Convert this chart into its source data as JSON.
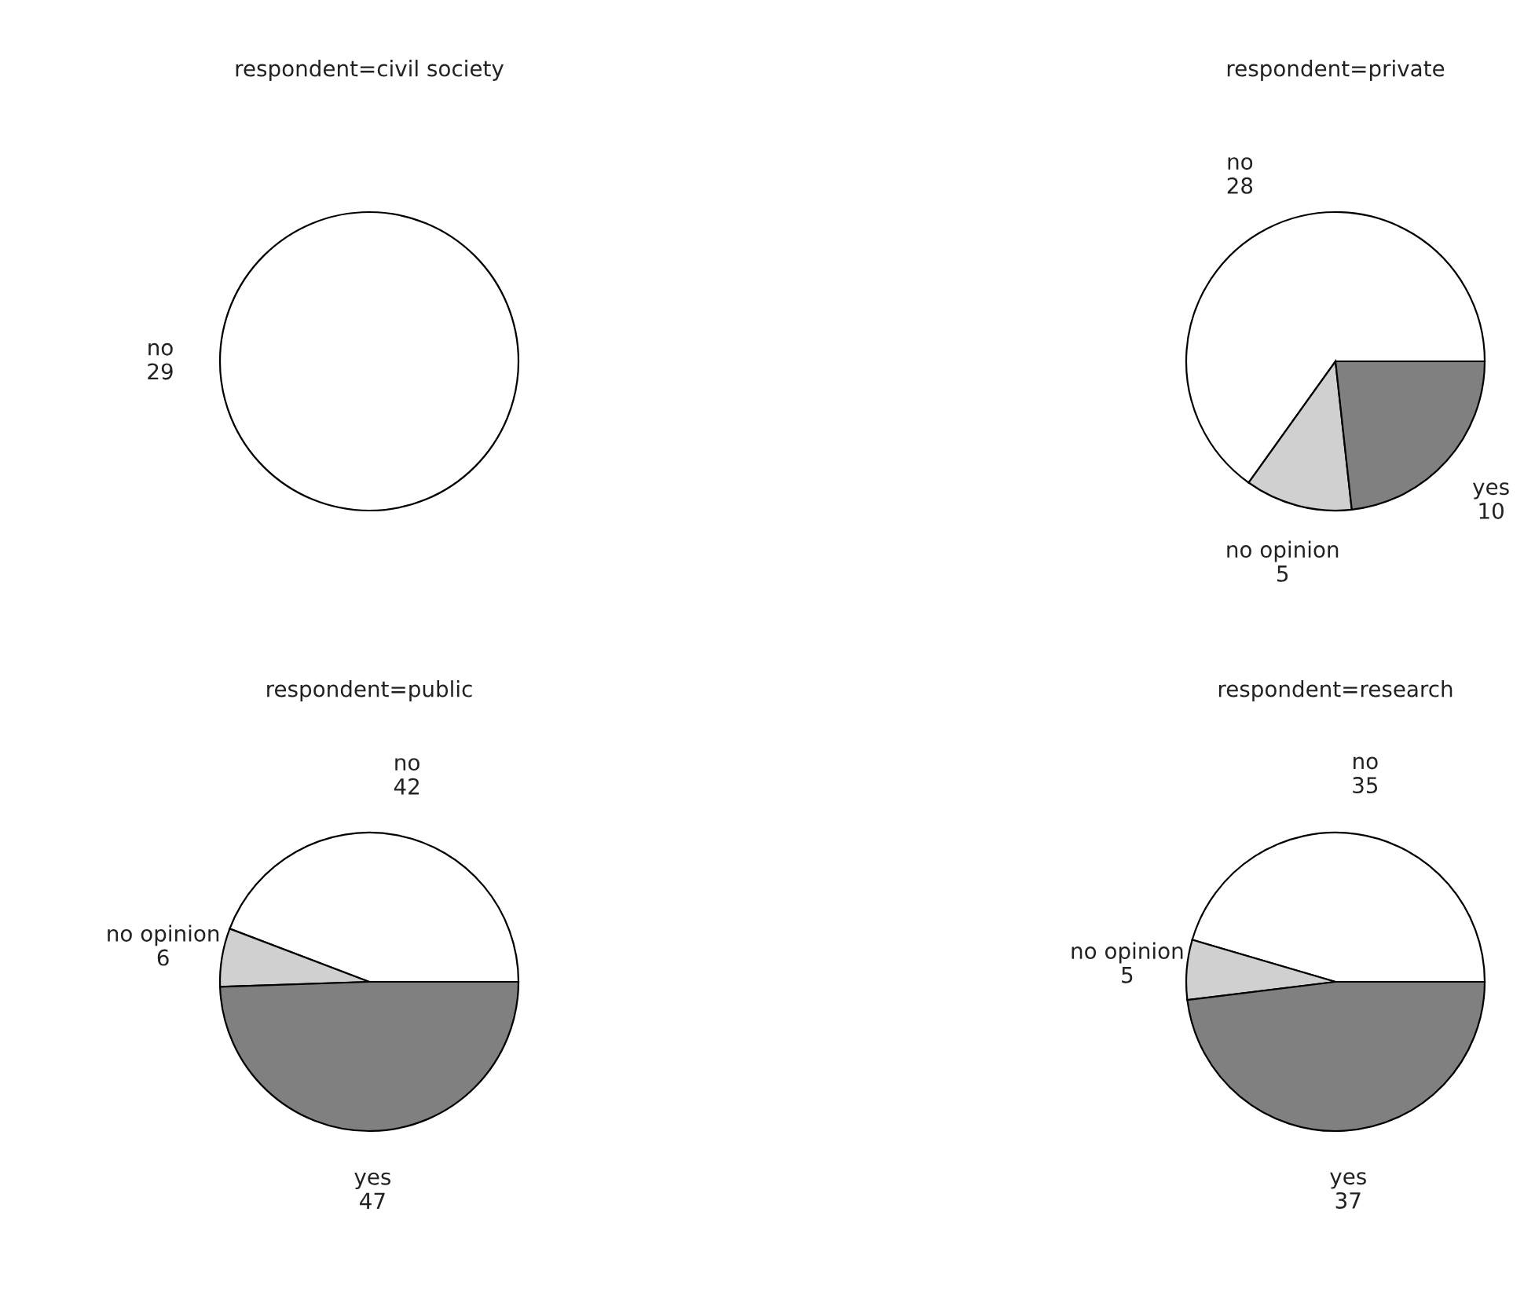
{
  "chart_data": [
    {
      "type": "pie",
      "title": "respondent=civil society",
      "categories": [
        "no"
      ],
      "values": [
        29
      ],
      "colors": [
        "#ffffff"
      ],
      "data_labels": true
    },
    {
      "type": "pie",
      "title": "respondent=private",
      "categories": [
        "no",
        "no opinion",
        "yes"
      ],
      "values": [
        28,
        5,
        10
      ],
      "colors": [
        "#ffffff",
        "#d0d0d0",
        "#808080"
      ],
      "data_labels": true
    },
    {
      "type": "pie",
      "title": "respondent=public",
      "categories": [
        "no",
        "no opinion",
        "yes"
      ],
      "values": [
        42,
        6,
        47
      ],
      "colors": [
        "#ffffff",
        "#d0d0d0",
        "#808080"
      ],
      "data_labels": true
    },
    {
      "type": "pie",
      "title": "respondent=research",
      "categories": [
        "no",
        "no opinion",
        "yes"
      ],
      "values": [
        35,
        5,
        37
      ],
      "colors": [
        "#ffffff",
        "#d0d0d0",
        "#808080"
      ],
      "data_labels": true
    }
  ]
}
